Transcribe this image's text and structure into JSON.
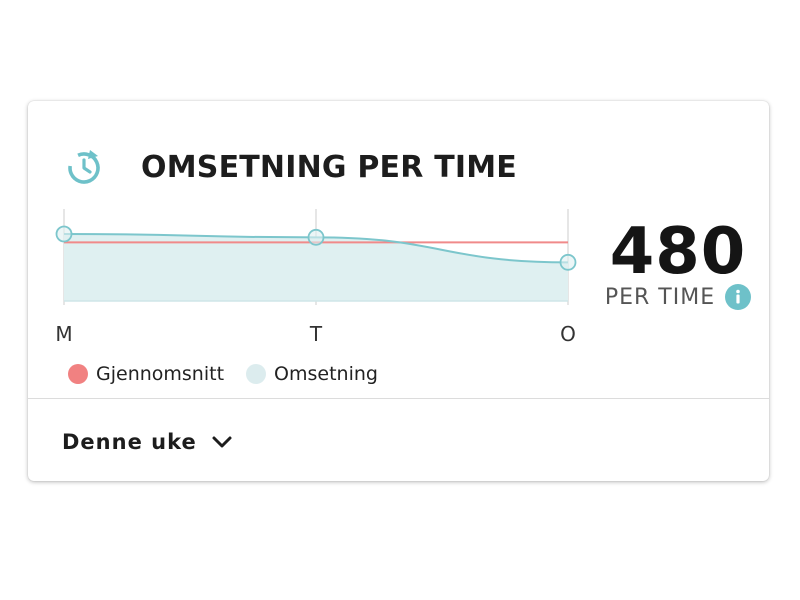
{
  "widget": {
    "title": "OMSETNING PER TIME",
    "kpi_value": "480",
    "kpi_unit": "PER TIME",
    "period_selector": "Denne uke"
  },
  "icons": {
    "header": "clock-refresh-icon",
    "info": "info-icon",
    "period": "chevron-down-icon"
  },
  "colors": {
    "accent": "#6ec1c9",
    "omsetning_line": "#7cc6cc",
    "omsetning_fill": "#dff0f1",
    "gjennomsnitt_line": "#f08a8a",
    "gjennomsnitt_swatch": "#f18181",
    "omsetning_swatch": "#dcecee"
  },
  "legend": {
    "items": [
      {
        "label": "Gjennomsnitt",
        "color": "#f18181"
      },
      {
        "label": "Omsetning",
        "color": "#dcecee"
      }
    ]
  },
  "chart_data": {
    "type": "line",
    "categories": [
      "M",
      "T",
      "O"
    ],
    "series": [
      {
        "name": "Gjennomsnitt",
        "values": [
          480,
          480,
          480
        ]
      },
      {
        "name": "Omsetning",
        "values": [
          490,
          486,
          456
        ]
      }
    ],
    "ylim": [
      400,
      520
    ],
    "grid": true
  }
}
